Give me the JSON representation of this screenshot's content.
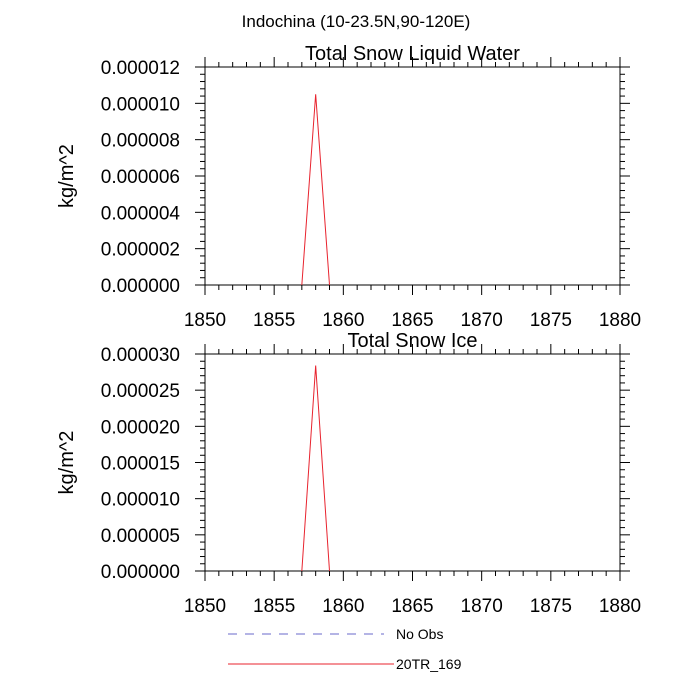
{
  "figure": {
    "title": "Indochina (10-23.5N,90-120E)",
    "colors": {
      "obs": "#6a6acb",
      "model": "#e8232e"
    }
  },
  "chart_data": [
    {
      "type": "line",
      "title": "Total Snow Liquid Water",
      "xlabel": "",
      "ylabel": "kg/m^2",
      "xlim": [
        1850,
        1880
      ],
      "ylim": [
        0,
        1.2e-05
      ],
      "xticks": [
        1850,
        1855,
        1860,
        1865,
        1870,
        1875,
        1880
      ],
      "xtick_labels": [
        "1850",
        "1855",
        "1860",
        "1865",
        "1870",
        "1875",
        "1880"
      ],
      "yticks": [
        0,
        2e-06,
        4e-06,
        6e-06,
        8e-06,
        1e-05,
        1.2e-05
      ],
      "ytick_labels": [
        "0.000000",
        "0.000002",
        "0.000004",
        "0.000006",
        "0.000008",
        "0.000010",
        "0.000012"
      ],
      "series": [
        {
          "name": "20TR_169",
          "color": "#e8232e",
          "x": [
            1857,
            1858,
            1859
          ],
          "y": [
            0,
            1.05e-05,
            0
          ]
        }
      ]
    },
    {
      "type": "line",
      "title": "Total Snow Ice",
      "xlabel": "",
      "ylabel": "kg/m^2",
      "xlim": [
        1850,
        1880
      ],
      "ylim": [
        0,
        3e-05
      ],
      "xticks": [
        1850,
        1855,
        1860,
        1865,
        1870,
        1875,
        1880
      ],
      "xtick_labels": [
        "1850",
        "1855",
        "1860",
        "1865",
        "1870",
        "1875",
        "1880"
      ],
      "yticks": [
        0,
        5e-06,
        1e-05,
        1.5e-05,
        2e-05,
        2.5e-05,
        3e-05
      ],
      "ytick_labels": [
        "0.000000",
        "0.000005",
        "0.000010",
        "0.000015",
        "0.000020",
        "0.000025",
        "0.000030"
      ],
      "series": [
        {
          "name": "20TR_169",
          "color": "#e8232e",
          "x": [
            1857,
            1858,
            1859
          ],
          "y": [
            0,
            2.84e-05,
            0
          ]
        }
      ]
    }
  ],
  "legend": {
    "position": "bottom",
    "items": [
      {
        "label": "No Obs",
        "style": "dashed",
        "color": "#6a6acb"
      },
      {
        "label": "20TR_169",
        "style": "solid",
        "color": "#e8232e"
      }
    ]
  }
}
